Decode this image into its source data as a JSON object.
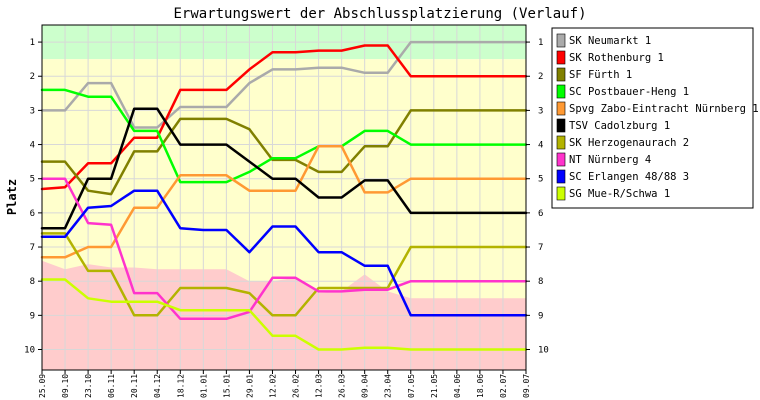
{
  "chart_data": {
    "type": "line",
    "title": "Erwartungswert der Abschlussplatzierung (Verlauf)",
    "ylabel": "Platz",
    "ylim": [
      0.5,
      10.6
    ],
    "y_inverted": true,
    "y_ticks": [
      "1",
      "2",
      "3",
      "4",
      "5",
      "6",
      "7",
      "8",
      "9",
      "10"
    ],
    "categories": [
      "25.09",
      "09.10",
      "23.10",
      "06.11",
      "20.11",
      "04.12",
      "18.12",
      "01.01",
      "15.01",
      "29.01",
      "12.02",
      "26.02",
      "12.03",
      "26.03",
      "09.04",
      "23.04",
      "07.05",
      "21.05",
      "04.06",
      "18.06",
      "02.07",
      "09.07"
    ],
    "grid": true,
    "legend_position": "top-right",
    "zones": [
      {
        "name": "promotion",
        "color": "#ccffcc",
        "y_from": 0.5,
        "y_to": 1.5
      },
      {
        "name": "middle",
        "color": "#ffffcc",
        "y_from": 1.5,
        "y_to": 10.6
      },
      {
        "name": "relegation",
        "color": "#ffcccc",
        "top": [
          7.4,
          7.65,
          7.5,
          7.6,
          7.6,
          7.65,
          7.65,
          7.65,
          7.65,
          8.0,
          8.0,
          7.9,
          8.35,
          8.3,
          7.8,
          8.3,
          8.5,
          8.5,
          8.5,
          8.5,
          8.5,
          8.5
        ],
        "bottom": 10.6
      }
    ],
    "series": [
      {
        "name": "SK Neumarkt 1",
        "color": "#aaaaaa",
        "values": [
          3.0,
          3.0,
          2.2,
          2.2,
          3.5,
          3.5,
          2.9,
          2.9,
          2.9,
          2.2,
          1.8,
          1.8,
          1.75,
          1.75,
          1.9,
          1.9,
          1.0,
          1.0,
          1.0,
          1.0,
          1.0,
          1.0
        ]
      },
      {
        "name": "SK Rothenburg 1",
        "color": "#ff0000",
        "values": [
          5.3,
          5.25,
          4.55,
          4.55,
          3.8,
          3.8,
          2.4,
          2.4,
          2.4,
          1.8,
          1.3,
          1.3,
          1.25,
          1.25,
          1.1,
          1.1,
          2.0,
          2.0,
          2.0,
          2.0,
          2.0,
          2.0
        ]
      },
      {
        "name": "SF Fürth 1",
        "color": "#808000",
        "values": [
          4.5,
          4.5,
          5.35,
          5.45,
          4.2,
          4.2,
          3.25,
          3.25,
          3.25,
          3.55,
          4.45,
          4.45,
          4.8,
          4.8,
          4.05,
          4.05,
          3.0,
          3.0,
          3.0,
          3.0,
          3.0,
          3.0
        ]
      },
      {
        "name": "SC Postbauer-Heng 1",
        "color": "#00ff00",
        "values": [
          2.4,
          2.4,
          2.6,
          2.6,
          3.6,
          3.6,
          5.1,
          5.1,
          5.1,
          4.8,
          4.4,
          4.4,
          4.05,
          4.05,
          3.6,
          3.6,
          4.0,
          4.0,
          4.0,
          4.0,
          4.0,
          4.0
        ]
      },
      {
        "name": "Spvg Zabo-Eintracht Nürnberg 1",
        "color": "#ff9933",
        "values": [
          7.3,
          7.3,
          7.0,
          7.0,
          5.85,
          5.85,
          4.9,
          4.9,
          4.9,
          5.35,
          5.35,
          5.35,
          4.05,
          4.05,
          5.4,
          5.4,
          5.0,
          5.0,
          5.0,
          5.0,
          5.0,
          5.0
        ]
      },
      {
        "name": "TSV Cadolzburg 1",
        "color": "#000000",
        "values": [
          6.45,
          6.45,
          5.0,
          5.0,
          2.95,
          2.95,
          4.0,
          4.0,
          4.0,
          4.5,
          5.0,
          5.0,
          5.55,
          5.55,
          5.05,
          5.05,
          6.0,
          6.0,
          6.0,
          6.0,
          6.0,
          6.0
        ]
      },
      {
        "name": "SK Herzogenaurach 2",
        "color": "#b3b300",
        "values": [
          6.6,
          6.6,
          7.7,
          7.7,
          9.0,
          9.0,
          8.2,
          8.2,
          8.2,
          8.35,
          9.0,
          9.0,
          8.2,
          8.2,
          8.2,
          8.2,
          7.0,
          7.0,
          7.0,
          7.0,
          7.0,
          7.0
        ]
      },
      {
        "name": "NT Nürnberg 4",
        "color": "#ff33cc",
        "values": [
          5.0,
          5.0,
          6.3,
          6.35,
          8.35,
          8.35,
          9.1,
          9.1,
          9.1,
          8.9,
          7.9,
          7.9,
          8.3,
          8.3,
          8.25,
          8.25,
          8.0,
          8.0,
          8.0,
          8.0,
          8.0,
          8.0
        ]
      },
      {
        "name": "SC Erlangen 48/88 3",
        "color": "#0000ff",
        "values": [
          6.7,
          6.7,
          5.85,
          5.8,
          5.35,
          5.35,
          6.45,
          6.5,
          6.5,
          7.15,
          6.4,
          6.4,
          7.15,
          7.15,
          7.55,
          7.55,
          9.0,
          9.0,
          9.0,
          9.0,
          9.0,
          9.0
        ]
      },
      {
        "name": "SG Mue-R/Schwa 1",
        "color": "#ccff00",
        "values": [
          7.95,
          7.95,
          8.5,
          8.6,
          8.6,
          8.6,
          8.85,
          8.85,
          8.85,
          8.85,
          9.6,
          9.6,
          10.0,
          10.0,
          9.95,
          9.95,
          10.0,
          10.0,
          10.0,
          10.0,
          10.0,
          10.0
        ]
      }
    ]
  }
}
